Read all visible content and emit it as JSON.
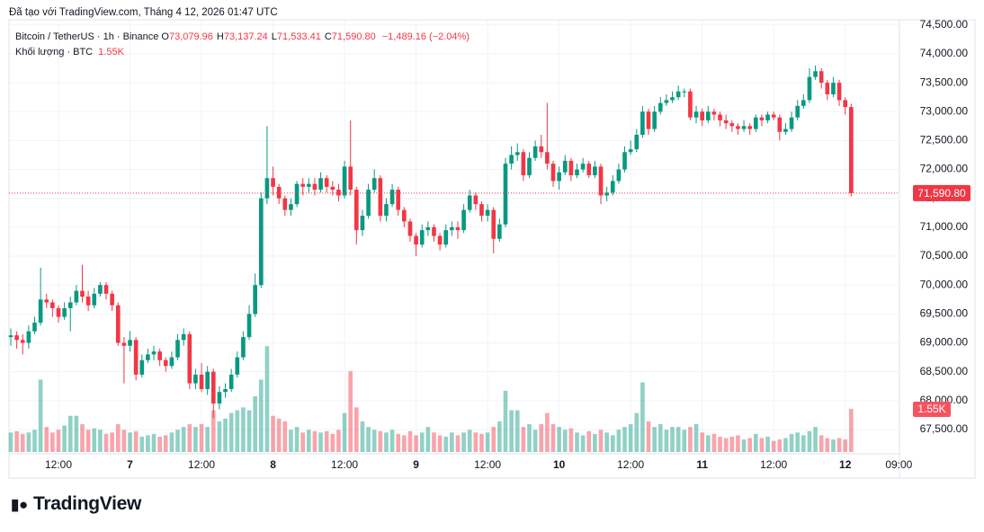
{
  "chart_data": {
    "type": "candlestick",
    "title": "Đã tạo với TradingView.com, Tháng 4 12, 2026 01:47 UTC",
    "subtitle": "Bitcoin / TetherUS · 1h · Binance",
    "ohlc_legend": [
      {
        "key": "O",
        "value": "73,079.96"
      },
      {
        "key": "H",
        "value": "73,137.24"
      },
      {
        "key": "L",
        "value": "71,533.41"
      },
      {
        "key": "C",
        "value": "71,590.80"
      }
    ],
    "change": "−1,489.16 (−2.04%)",
    "brand": "TradingView",
    "up_color": "#089981",
    "down_color": "#f23645",
    "grid": true,
    "xlim": [
      -0.3,
      149.1
    ],
    "xticks": [
      {
        "value": 8,
        "label": "12:00"
      },
      {
        "value": 20,
        "label": "7"
      },
      {
        "value": 32,
        "label": "12:00"
      },
      {
        "value": 44,
        "label": "8"
      },
      {
        "value": 56,
        "label": "12:00"
      },
      {
        "value": 68,
        "label": "9"
      },
      {
        "value": 80,
        "label": "12:00"
      },
      {
        "value": 92,
        "label": "10"
      },
      {
        "value": 104,
        "label": "12:00"
      },
      {
        "value": 116,
        "label": "11"
      },
      {
        "value": 128,
        "label": "12:00"
      },
      {
        "value": 140,
        "label": "12"
      },
      {
        "value": 149,
        "label": "09:00"
      }
    ],
    "ylim": [
      67080,
      74590
    ],
    "yticks": [
      {
        "value": 67500,
        "label": "67,500.00"
      },
      {
        "value": 68000,
        "label": "68,000.00"
      },
      {
        "value": 68500,
        "label": "68,500.00"
      },
      {
        "value": 69000,
        "label": "69,000.00"
      },
      {
        "value": 69500,
        "label": "69,500.00"
      },
      {
        "value": 70000,
        "label": "70,000.00"
      },
      {
        "value": 70500,
        "label": "70,500.00"
      },
      {
        "value": 71000,
        "label": "71,000.00"
      },
      {
        "value": 71500,
        "label": "71,500.00"
      },
      {
        "value": 72000,
        "label": "72,000.00"
      },
      {
        "value": 72500,
        "label": "72,500.00"
      },
      {
        "value": 73000,
        "label": "73,000.00"
      },
      {
        "value": 73500,
        "label": "73,500.00"
      },
      {
        "value": 74000,
        "label": "74,000.00"
      },
      {
        "value": 74500,
        "label": "74,500.00"
      }
    ],
    "last_price_label": "71,590.80",
    "open": [
      69100,
      69130,
      69050,
      69000,
      69200,
      69350,
      69750,
      69700,
      69600,
      69450,
      69600,
      69700,
      69900,
      69800,
      69650,
      69850,
      70000,
      69850,
      69650,
      69000,
      68950,
      69050,
      68450,
      68700,
      68800,
      68850,
      68700,
      68600,
      68750,
      69050,
      69150,
      68300,
      68450,
      68200,
      68500,
      67950,
      68150,
      68200,
      68450,
      68750,
      69100,
      69500,
      70000,
      71500,
      71850,
      71700,
      71500,
      71300,
      71400,
      71750,
      71700,
      71750,
      71650,
      71850,
      71700,
      71650,
      71550,
      72050,
      71650,
      70950,
      71200,
      71650,
      71850,
      71200,
      71400,
      71650,
      71300,
      71100,
      70850,
      70700,
      70950,
      71000,
      70850,
      70700,
      70950,
      71000,
      70950,
      71300,
      71550,
      71400,
      71200,
      71300,
      70800,
      71050,
      72100,
      72250,
      72300,
      71900,
      72200,
      72400,
      72300,
      72100,
      71800,
      71950,
      72150,
      71900,
      72000,
      72100,
      71900,
      72050,
      71550,
      71600,
      71800,
      72000,
      72300,
      72350,
      72600,
      73000,
      72700,
      73000,
      73150,
      73200,
      73250,
      73350,
      73350,
      72900,
      73000,
      72850,
      73000,
      72950,
      72850,
      72800,
      72750,
      72700,
      72750,
      72700,
      72900,
      72850,
      72950,
      72900,
      72650,
      72700,
      72900,
      73100,
      73200,
      73600,
      73700,
      73500,
      73300,
      73500,
      73200,
      73079.96
    ],
    "high": [
      69250,
      69200,
      69150,
      69300,
      69450,
      70300,
      69850,
      69750,
      69650,
      69700,
      69800,
      70000,
      70350,
      69900,
      69950,
      70050,
      70050,
      69900,
      69700,
      69100,
      69200,
      69100,
      68800,
      68900,
      68950,
      68900,
      68750,
      68850,
      69150,
      69250,
      69200,
      68550,
      68650,
      68600,
      68550,
      68250,
      68300,
      68550,
      68850,
      69200,
      69650,
      70200,
      71600,
      72750,
      72050,
      71750,
      71550,
      71500,
      71800,
      71850,
      71850,
      71850,
      71950,
      71900,
      71800,
      71750,
      72150,
      72850,
      71700,
      71300,
      71750,
      72000,
      71900,
      71500,
      71750,
      71700,
      71350,
      71150,
      70900,
      71050,
      71100,
      71050,
      70900,
      71050,
      71100,
      71100,
      71400,
      71650,
      71600,
      71450,
      71400,
      71350,
      71150,
      72200,
      72400,
      72450,
      72350,
      72300,
      72500,
      72600,
      73150,
      72150,
      72050,
      72250,
      72200,
      72100,
      72200,
      72150,
      72150,
      72100,
      71700,
      71900,
      72100,
      72400,
      72500,
      72700,
      73100,
      73050,
      73100,
      73250,
      73300,
      73350,
      73450,
      73400,
      73400,
      73100,
      73050,
      73100,
      73050,
      73000,
      72950,
      72850,
      72800,
      72850,
      72800,
      72950,
      72950,
      73000,
      73000,
      72950,
      72800,
      73000,
      73200,
      73300,
      73750,
      73800,
      73750,
      73550,
      73600,
      73550,
      73250,
      73137.24
    ],
    "low": [
      68950,
      68900,
      68800,
      68900,
      69150,
      69300,
      69600,
      69450,
      69350,
      69400,
      69200,
      69650,
      69700,
      69550,
      69600,
      69800,
      69750,
      69550,
      68950,
      68300,
      68850,
      68350,
      68400,
      68650,
      68700,
      68600,
      68500,
      68550,
      68700,
      68950,
      68200,
      68200,
      68150,
      68100,
      67700,
      67850,
      68050,
      68150,
      68400,
      68700,
      69050,
      69450,
      69950,
      71400,
      71550,
      71400,
      71200,
      71200,
      71350,
      71550,
      71600,
      71550,
      71600,
      71600,
      71550,
      71450,
      71500,
      71550,
      70700,
      70850,
      71150,
      71600,
      71100,
      71100,
      71350,
      71200,
      71000,
      70750,
      70500,
      70650,
      70850,
      70750,
      70600,
      70650,
      70850,
      70800,
      70900,
      71250,
      71300,
      71100,
      71100,
      70550,
      70750,
      71000,
      72000,
      72150,
      71800,
      71850,
      72150,
      72200,
      72000,
      71700,
      71650,
      71900,
      71800,
      71850,
      71950,
      71850,
      71850,
      71400,
      71450,
      71550,
      71750,
      71950,
      72250,
      72300,
      72550,
      72600,
      72650,
      72950,
      73100,
      73150,
      73200,
      73250,
      72850,
      72800,
      72750,
      72800,
      72850,
      72750,
      72700,
      72650,
      72600,
      72650,
      72600,
      72650,
      72750,
      72800,
      72850,
      72500,
      72600,
      72650,
      72850,
      73050,
      73150,
      73550,
      73400,
      73200,
      73250,
      73100,
      72950,
      71533.41
    ],
    "close": [
      69130,
      69050,
      69000,
      69200,
      69350,
      69750,
      69700,
      69600,
      69450,
      69600,
      69700,
      69900,
      69800,
      69650,
      69850,
      70000,
      69850,
      69650,
      69000,
      68950,
      69050,
      68450,
      68700,
      68800,
      68850,
      68700,
      68600,
      68750,
      69050,
      69150,
      68300,
      68450,
      68200,
      68500,
      67950,
      68150,
      68200,
      68450,
      68750,
      69100,
      69500,
      70000,
      71500,
      71850,
      71700,
      71500,
      71300,
      71400,
      71750,
      71700,
      71750,
      71650,
      71850,
      71700,
      71650,
      71550,
      72050,
      71650,
      70950,
      71200,
      71650,
      71850,
      71200,
      71400,
      71650,
      71300,
      71100,
      70850,
      70700,
      70950,
      71000,
      70850,
      70700,
      70950,
      71000,
      70950,
      71300,
      71550,
      71400,
      71200,
      71300,
      70800,
      71050,
      72100,
      72250,
      72300,
      71900,
      72200,
      72400,
      72300,
      72100,
      71800,
      71950,
      72150,
      71900,
      72000,
      72100,
      71900,
      72050,
      71550,
      71600,
      71800,
      72000,
      72300,
      72350,
      72600,
      73000,
      72700,
      73000,
      73150,
      73200,
      73250,
      73350,
      73350,
      72900,
      73000,
      72850,
      73000,
      72950,
      72850,
      72800,
      72750,
      72700,
      72750,
      72700,
      72900,
      72850,
      72950,
      72900,
      72650,
      72700,
      72900,
      73100,
      73200,
      73600,
      73700,
      73500,
      73300,
      73500,
      73200,
      73079.96,
      71590.8
    ],
    "volume": {
      "name": "Khối lượng · BTC",
      "last_label": "1.55K",
      "values": [
        700,
        750,
        650,
        700,
        800,
        2600,
        900,
        700,
        800,
        950,
        1300,
        1300,
        1000,
        800,
        850,
        800,
        650,
        700,
        1000,
        800,
        700,
        750,
        550,
        600,
        650,
        550,
        600,
        700,
        800,
        900,
        1000,
        900,
        1000,
        900,
        1500,
        1100,
        1200,
        1400,
        1500,
        1600,
        1500,
        2000,
        2600,
        3800,
        1300,
        1200,
        1100,
        800,
        900,
        700,
        800,
        750,
        700,
        750,
        650,
        800,
        1400,
        2900,
        1600,
        1100,
        900,
        800,
        750,
        700,
        800,
        650,
        600,
        750,
        600,
        700,
        900,
        700,
        600,
        550,
        700,
        600,
        700,
        800,
        700,
        650,
        700,
        900,
        1100,
        2200,
        1500,
        1500,
        900,
        1000,
        800,
        1000,
        1400,
        1000,
        900,
        800,
        850,
        700,
        600,
        750,
        650,
        800,
        700,
        600,
        800,
        900,
        1000,
        1400,
        2500,
        1100,
        900,
        1000,
        800,
        900,
        900,
        800,
        900,
        1000,
        700,
        600,
        650,
        550,
        500,
        550,
        600,
        450,
        500,
        650,
        500,
        550,
        400,
        450,
        500,
        650,
        700,
        600,
        750,
        900,
        600,
        500,
        450,
        500,
        450,
        1550
      ]
    }
  }
}
